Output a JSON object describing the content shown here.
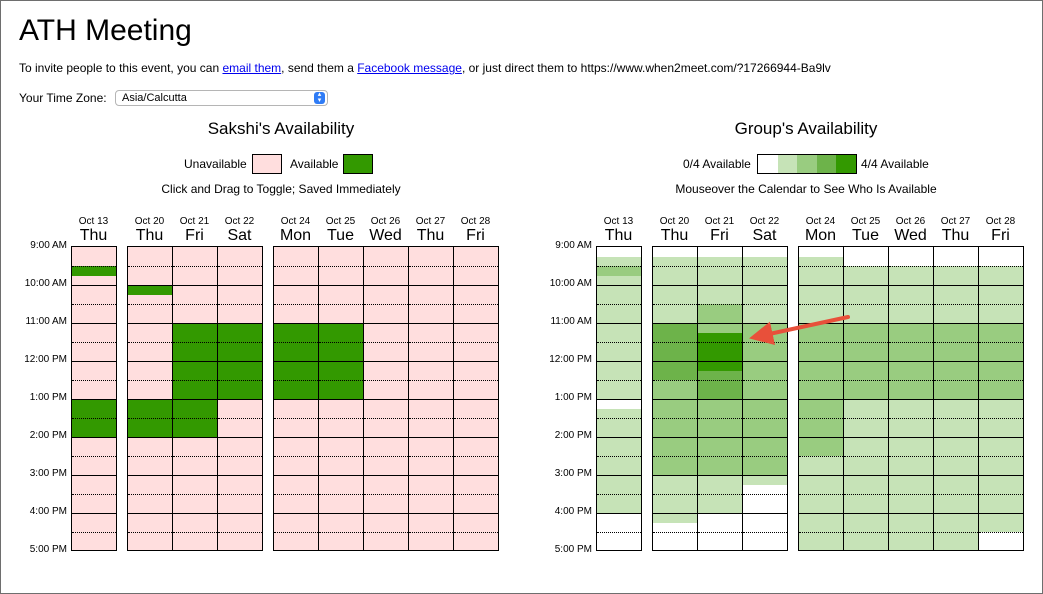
{
  "title": "ATH Meeting",
  "invite": {
    "prefix": "To invite people to this event, you can ",
    "email_link": "email them",
    "middle": ", send them a ",
    "facebook_link": "Facebook message",
    "suffix": ", or just direct them to https://www.when2meet.com/?17266944-Ba9lv"
  },
  "timezone": {
    "label": "Your Time Zone:",
    "value": "Asia/Calcutta"
  },
  "colors": {
    "unavailable": "#ffdede",
    "available": "#339900",
    "group": [
      "#ffffff",
      "#c6e3b7",
      "#99cc80",
      "#6db34a",
      "#339900"
    ]
  },
  "personal": {
    "title": "Sakshi's Availability",
    "legend_unavailable": "Unavailable",
    "legend_available": "Available",
    "hint": "Click and Drag to Toggle; Saved Immediately"
  },
  "group": {
    "title": "Group's Availability",
    "legend_min": "0/4 Available",
    "legend_max": "4/4 Available",
    "hint": "Mouseover the Calendar to See Who Is Available",
    "total": 4
  },
  "days": [
    {
      "date": "Oct 13",
      "day": "Thu"
    },
    {
      "date": "Oct 20",
      "day": "Thu"
    },
    {
      "date": "Oct 21",
      "day": "Fri"
    },
    {
      "date": "Oct 22",
      "day": "Sat"
    },
    {
      "date": "Oct 24",
      "day": "Mon"
    },
    {
      "date": "Oct 25",
      "day": "Tue"
    },
    {
      "date": "Oct 26",
      "day": "Wed"
    },
    {
      "date": "Oct 27",
      "day": "Thu"
    },
    {
      "date": "Oct 28",
      "day": "Fri"
    }
  ],
  "times": [
    "9:00 AM",
    "10:00 AM",
    "11:00 AM",
    "12:00 PM",
    "1:00 PM",
    "2:00 PM",
    "3:00 PM",
    "4:00 PM",
    "5:00 PM"
  ],
  "personal_availability": [
    "0010000000000000111100000000000000",
    "0000100000000000111100000000000000",
    "0000000011111111111100000000000000",
    "0000000011111111000000000000000000",
    "0000000011111111000000000000000000",
    "0000000011111111000000000000000000",
    "0000000000000000000000000000000000",
    "0000000000000000000000000000000000",
    "0000000000000000000000000000000000"
  ],
  "group_availability": [
    "0121111111111111011111111111000000",
    "0111111133333322222222221111100000",
    "0111112224444333222222221111000000",
    "0111111122222222222222221000000000",
    "0111111122222222222222111111111111",
    "0011111122222222111111111111111111",
    "0011111122222222111111111111111111",
    "0011111122222222111111111111111111",
    "0011111122222222111111111111110000"
  ]
}
